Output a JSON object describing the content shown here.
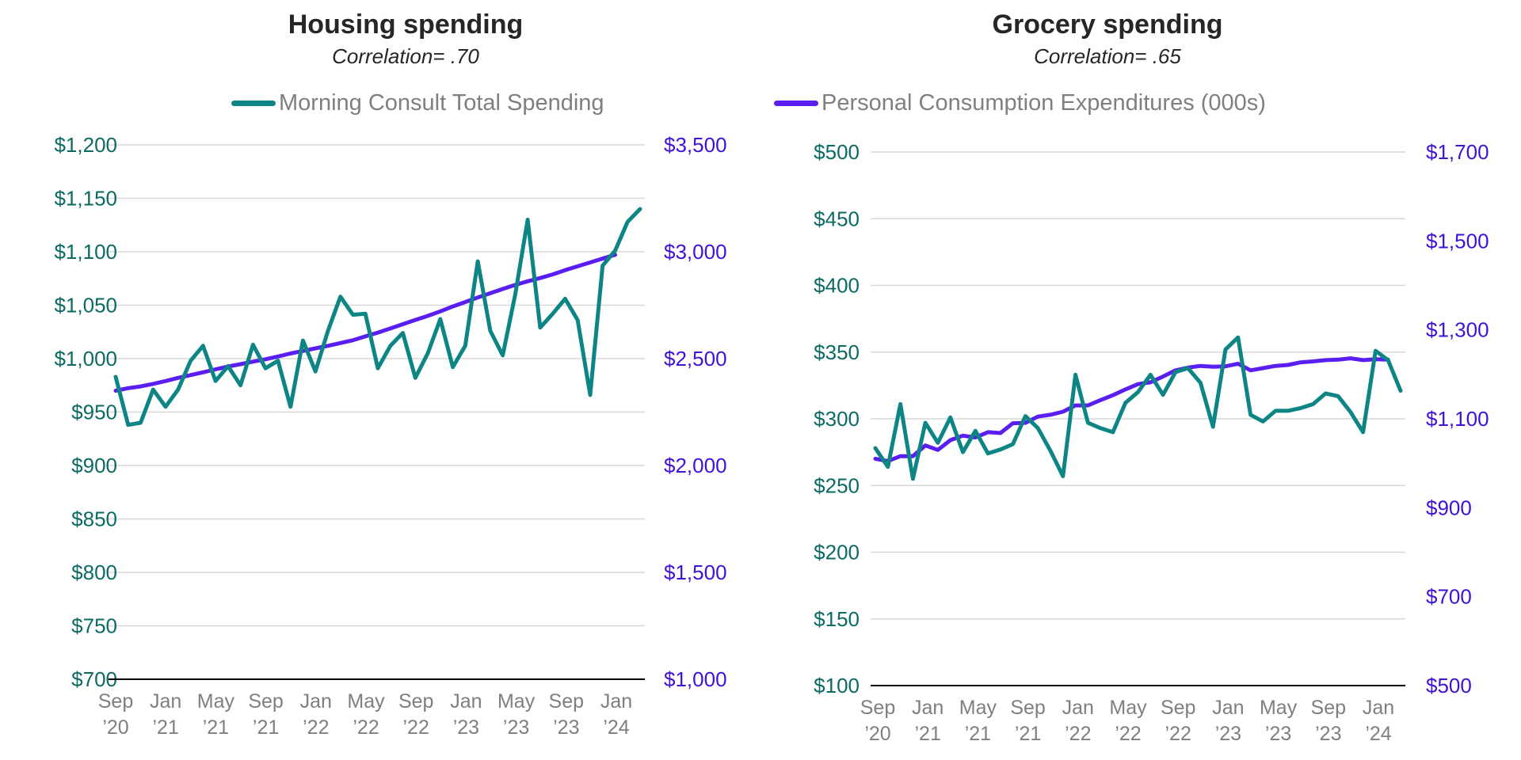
{
  "colors": {
    "morning_consult": "#0E8585",
    "pce": "#5B1EF2",
    "left_axis_text": "#0B6B63",
    "right_axis_text": "#3F12D6",
    "grid": "#d9d9d9",
    "baseline": "#000000"
  },
  "legend": {
    "morning_consult": "Morning Consult Total Spending",
    "pce": "Personal Consumption Expenditures (000s)"
  },
  "chart_data": [
    {
      "type": "line",
      "title": "Housing spending",
      "subtitle": "Correlation= .70",
      "x_tick_labels": [
        [
          "Sep",
          "’20"
        ],
        [
          "Jan",
          "’21"
        ],
        [
          "May",
          "’21"
        ],
        [
          "Sep",
          "’21"
        ],
        [
          "Jan",
          "’22"
        ],
        [
          "May",
          "’22"
        ],
        [
          "Sep",
          "’22"
        ],
        [
          "Jan",
          "’23"
        ],
        [
          "May",
          "’23"
        ],
        [
          "Sep",
          "’23"
        ],
        [
          "Jan",
          "’24"
        ]
      ],
      "y_left": {
        "ticks": [
          "$700",
          "$750",
          "$800",
          "$850",
          "$900",
          "$950",
          "$1,000",
          "$1,050",
          "$1,100",
          "$1,150",
          "$1,200"
        ],
        "range": [
          700,
          1200
        ]
      },
      "y_right": {
        "ticks": [
          "$1,000",
          "$1,500",
          "$2,000",
          "$2,500",
          "$3,000",
          "$3,500"
        ],
        "range": [
          1000,
          3500
        ]
      },
      "grid": true,
      "legend_position": "top",
      "series": [
        {
          "name": "Morning Consult Total Spending",
          "axis": "left",
          "values": [
            983,
            938,
            940,
            971,
            955,
            971,
            998,
            1012,
            979,
            993,
            975,
            1013,
            991,
            998,
            955,
            1017,
            988,
            1026,
            1058,
            1041,
            1042,
            991,
            1012,
            1024,
            982,
            1005,
            1037,
            992,
            1012,
            1091,
            1026,
            1003,
            1060,
            1130,
            1029,
            1042,
            1056,
            1036,
            966,
            1087,
            1101,
            1128,
            1140
          ]
        },
        {
          "name": "Personal Consumption Expenditures (000s)",
          "axis": "right",
          "values": [
            2350,
            2362,
            2370,
            2382,
            2395,
            2410,
            2423,
            2436,
            2450,
            2463,
            2474,
            2486,
            2497,
            2510,
            2524,
            2536,
            2548,
            2560,
            2573,
            2586,
            2604,
            2622,
            2641,
            2661,
            2681,
            2700,
            2721,
            2744,
            2765,
            2786,
            2806,
            2826,
            2845,
            2862,
            2877,
            2894,
            2914,
            2932,
            2950,
            2968,
            2986
          ]
        }
      ]
    },
    {
      "type": "line",
      "title": "Grocery spending",
      "subtitle": "Correlation= .65",
      "x_tick_labels": [
        [
          "Sep",
          "’20"
        ],
        [
          "Jan",
          "’21"
        ],
        [
          "May",
          "’21"
        ],
        [
          "Sep",
          "’21"
        ],
        [
          "Jan",
          "’22"
        ],
        [
          "May",
          "’22"
        ],
        [
          "Sep",
          "’22"
        ],
        [
          "Jan",
          "’23"
        ],
        [
          "May",
          "’23"
        ],
        [
          "Sep",
          "’23"
        ],
        [
          "Jan",
          "’24"
        ]
      ],
      "y_left": {
        "ticks": [
          "$100",
          "$150",
          "$200",
          "$250",
          "$300",
          "$350",
          "$400",
          "$450",
          "$500"
        ],
        "range": [
          100,
          500
        ]
      },
      "y_right": {
        "ticks": [
          "$500",
          "$700",
          "$900",
          "$1,100",
          "$1,300",
          "$1,500",
          "$1,700"
        ],
        "range": [
          500,
          1700
        ]
      },
      "grid": true,
      "legend_position": "top",
      "series": [
        {
          "name": "Morning Consult Total Spending",
          "axis": "left",
          "values": [
            278,
            264,
            311,
            255,
            297,
            282,
            301,
            275,
            291,
            274,
            277,
            281,
            302,
            293,
            276,
            257,
            333,
            297,
            293,
            290,
            312,
            320,
            333,
            318,
            335,
            338,
            327,
            294,
            352,
            361,
            303,
            298,
            306,
            306,
            308,
            311,
            319,
            317,
            305,
            290,
            351,
            344,
            321
          ]
        },
        {
          "name": "Personal Consumption Expenditures (000s)",
          "axis": "right",
          "values": [
            1010,
            1005,
            1016,
            1016,
            1040,
            1030,
            1052,
            1062,
            1058,
            1070,
            1068,
            1090,
            1091,
            1105,
            1109,
            1116,
            1130,
            1130,
            1142,
            1153,
            1166,
            1178,
            1182,
            1195,
            1209,
            1215,
            1219,
            1217,
            1218,
            1224,
            1209,
            1214,
            1219,
            1221,
            1227,
            1229,
            1232,
            1233,
            1236,
            1232,
            1234,
            1233
          ]
        }
      ]
    }
  ]
}
